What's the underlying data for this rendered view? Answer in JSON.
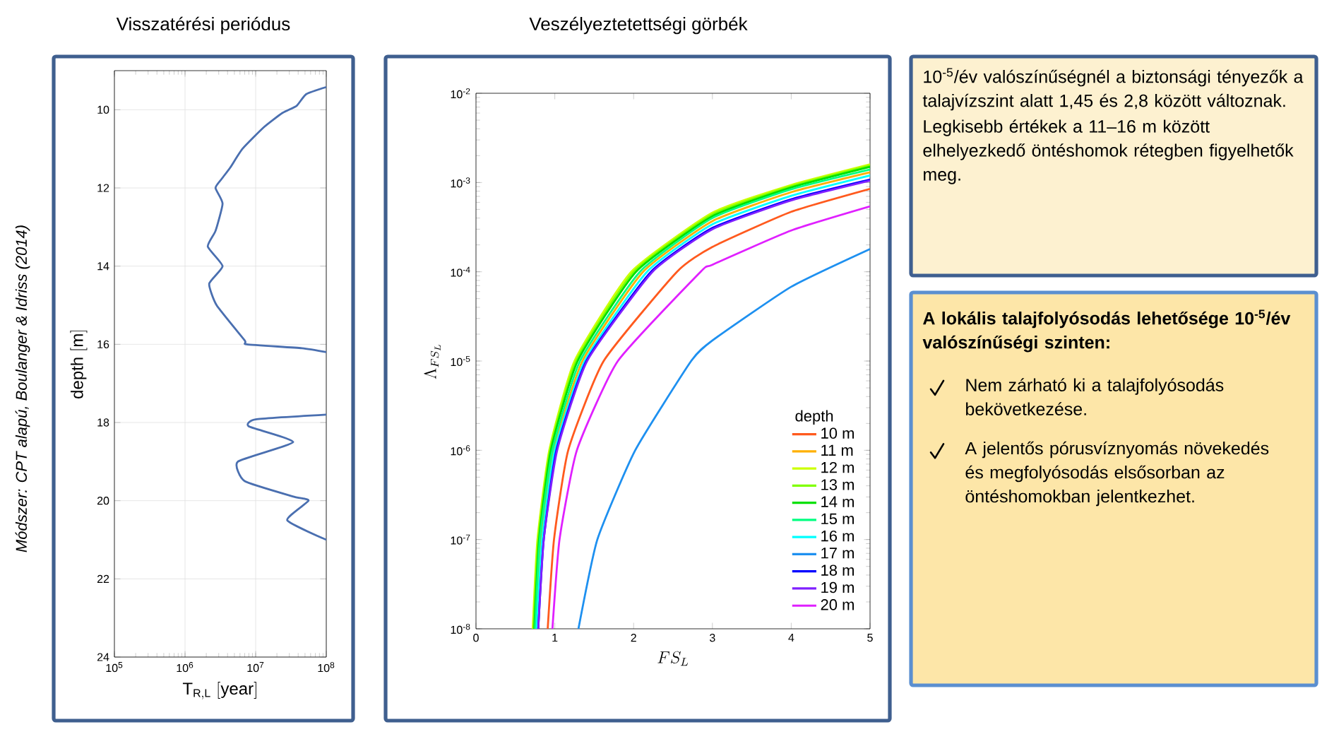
{
  "chart_data": [
    {
      "type": "line",
      "title": "Visszatérési periódus",
      "xlabel": "\\mathrm{T}_{\\mathrm{R,L}}\\;[\\mathrm{year}]",
      "ylabel": "\\mathrm{depth}\\;[\\mathrm{m}]",
      "annotations": [
        "Módszer: CPT alapú, Boulanger & Idriss (2014)"
      ],
      "log": "x",
      "grid": true,
      "xlim": [
        100000,
        100000000
      ],
      "ylim": [
        24,
        9
      ],
      "xticks": [
        {
          "value": 100000,
          "label": "10$^{5}$"
        },
        {
          "value": 1000000,
          "label": "10$^{6}$"
        },
        {
          "value": 10000000,
          "label": "10$^{7}$"
        },
        {
          "value": 100000000,
          "label": "10$^{8}$"
        }
      ],
      "yticks": [
        10,
        12,
        14,
        16,
        18,
        20,
        22,
        24
      ],
      "color": "#4a6fb0",
      "x": [
        100000000,
        52000000,
        38000000,
        24000000,
        13000000,
        6500000,
        4400000,
        3300000,
        2700000,
        3400000,
        2700000,
        2100000,
        3400000,
        2200000,
        2800000,
        7000000,
        7500000,
        45000000,
        100000000,
        null,
        100000000,
        10000000,
        8000000,
        34000000,
        5600000,
        7000000,
        35000000,
        56000000,
        28000000,
        100000000
      ],
      "values": [
        9.42,
        9.6,
        9.9,
        10.08,
        10.45,
        11.0,
        11.47,
        11.77,
        12.0,
        12.4,
        13.1,
        13.5,
        14.0,
        14.45,
        15.0,
        15.9,
        16.0,
        16.1,
        16.2,
        null,
        17.8,
        17.92,
        18.1,
        18.5,
        19.0,
        19.5,
        19.9,
        20.0,
        20.5,
        21.0
      ]
    },
    {
      "type": "line",
      "title": "Veszélyeztetettségi görbék",
      "xlabel": "FS_L",
      "ylabel": "\\Lambda_{FS_L}",
      "log": "y",
      "legend": "bottom right",
      "legend_title": "depth",
      "xlim": [
        0,
        5
      ],
      "ylim": [
        1e-08,
        0.01
      ],
      "xticks": [
        0,
        1,
        2,
        3,
        4,
        5
      ],
      "yticks": [
        {
          "value": 1e-08,
          "label": "10$^{-8}$"
        },
        {
          "value": 1e-07,
          "label": "10$^{-7}$"
        },
        {
          "value": 1e-06,
          "label": "10$^{-6}$"
        },
        {
          "value": 1e-05,
          "label": "10$^{-5}$"
        },
        {
          "value": 0.0001,
          "label": "10$^{-4}$"
        },
        {
          "value": 0.001,
          "label": "10$^{-3}$"
        },
        {
          "value": 0.01,
          "label": "10$^{-2}$"
        }
      ],
      "series": [
        {
          "name": "10 m",
          "color": "#ff5a1e",
          "x": [
            0.91,
            0.99,
            1.17,
            1.62,
            2.55,
            3,
            4,
            5
          ],
          "values": [
            1e-08,
            1e-07,
            1e-06,
            1e-05,
            0.0001,
            0.00019,
            0.00047,
            0.00085
          ]
        },
        {
          "name": "11 m",
          "color": "#ffb000",
          "x": [
            0.77,
            0.83,
            0.99,
            1.35,
            2.12,
            3,
            4,
            5
          ],
          "values": [
            1e-08,
            1e-07,
            1e-06,
            1e-05,
            0.0001,
            0.00037,
            0.00078,
            0.0013
          ]
        },
        {
          "name": "12 m",
          "color": "#ccff00",
          "x": [
            0.72,
            0.78,
            0.93,
            1.25,
            1.97,
            3,
            4,
            5
          ],
          "values": [
            1e-08,
            1e-07,
            1e-06,
            1e-05,
            0.0001,
            0.00046,
            0.00094,
            0.0016
          ]
        },
        {
          "name": "13 m",
          "color": "#80ff00",
          "x": [
            0.73,
            0.79,
            0.94,
            1.27,
            2.0,
            3,
            4,
            5
          ],
          "values": [
            1e-08,
            1e-07,
            1e-06,
            1e-05,
            0.0001,
            0.00044,
            0.00091,
            0.00155
          ]
        },
        {
          "name": "14 m",
          "color": "#00e000",
          "x": [
            0.74,
            0.8,
            0.95,
            1.29,
            2.03,
            3,
            4,
            5
          ],
          "values": [
            1e-08,
            1e-07,
            1e-06,
            1e-05,
            0.0001,
            0.00042,
            0.00088,
            0.0015
          ]
        },
        {
          "name": "15 m",
          "color": "#00ff80",
          "x": [
            0.75,
            0.81,
            0.97,
            1.32,
            2.08,
            3,
            4,
            5
          ],
          "values": [
            1e-08,
            1e-07,
            1e-06,
            1e-05,
            0.0001,
            0.0004,
            0.00084,
            0.0014
          ]
        },
        {
          "name": "16 m",
          "color": "#00ffff",
          "x": [
            0.77,
            0.84,
            1.0,
            1.38,
            2.17,
            3,
            4,
            5
          ],
          "values": [
            1e-08,
            1e-07,
            1e-06,
            1e-05,
            0.0001,
            0.00034,
            0.00071,
            0.0012
          ]
        },
        {
          "name": "17 m",
          "color": "#1e90f0",
          "x": [
            1.3,
            1.54,
            2.02,
            2.73,
            3,
            4,
            5
          ],
          "values": [
            1e-08,
            1e-07,
            1e-06,
            1e-05,
            1.7e-05,
            6.8e-05,
            0.00018
          ]
        },
        {
          "name": "18 m",
          "color": "#0000ff",
          "x": [
            0.79,
            0.86,
            1.02,
            1.4,
            2.22,
            3,
            4,
            5
          ],
          "values": [
            1e-08,
            1e-07,
            1e-06,
            1e-05,
            0.0001,
            0.00031,
            0.00065,
            0.00108
          ]
        },
        {
          "name": "19 m",
          "color": "#8020ff",
          "x": [
            0.79,
            0.86,
            1.03,
            1.41,
            2.24,
            3,
            4,
            5
          ],
          "values": [
            1e-08,
            1e-07,
            1e-06,
            1e-05,
            0.0001,
            0.0003,
            0.00063,
            0.00105
          ]
        },
        {
          "name": "20 m",
          "color": "#e020ff",
          "x": [
            0.97,
            1.06,
            1.28,
            1.8,
            2.85,
            3,
            4,
            5
          ],
          "values": [
            1e-08,
            1e-07,
            1e-06,
            1e-05,
            0.0001,
            0.00012,
            0.00029,
            0.00054
          ]
        }
      ]
    },
    {
      "type": "other",
      "title": "A lokális talajfolyósodás lehetősége 10$^{-5}$/év valószínűségi szinten:",
      "annotations": [
        "10$^{-5}$/év valószínűségnél a biztonsági tényezők a talajvízszint alatt 1,45 és 2,8 között változnak.",
        "Legkisebb értékek a 11–16 m között elhelyezkedő öntéshomok rétegben figyelhetők meg.",
        "Nem zárható ki a talajfolyósodás bekövetkezése.",
        "A jelentős pórusvíznyomás növekedés és megfolyósodás elsősorban az öntéshomokban jelentkezhet."
      ]
    }
  ]
}
